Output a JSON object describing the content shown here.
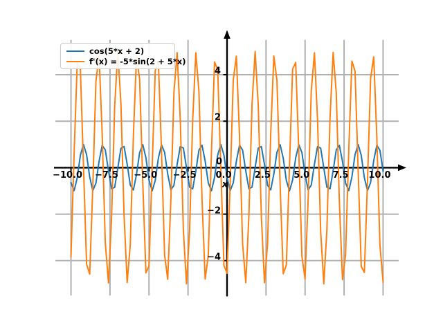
{
  "figure": {
    "background": "#ffffff",
    "x_axis_label": "x",
    "origin_y_tick_label": "0"
  },
  "legend": {
    "position": "upper-left"
  },
  "chart_data": {
    "type": "line",
    "title": "",
    "xlabel": "x",
    "ylabel": "",
    "xlim": [
      -11,
      11
    ],
    "ylim": [
      -5.5,
      5.5
    ],
    "grid": true,
    "grid_color": "#b0b0b0",
    "axis_color": "#000000",
    "legend_position": "upper left",
    "x_ticks": [
      -10.0,
      -7.5,
      -5.0,
      -2.5,
      0.0,
      2.5,
      5.0,
      7.5,
      10.0
    ],
    "x_tick_labels": [
      "−10.0",
      "−7.5",
      "−5.0",
      "−2.5",
      "0.0",
      "2.5",
      "5.0",
      "7.5",
      "10.0"
    ],
    "y_ticks": [
      -4,
      -2,
      0,
      2,
      4
    ],
    "y_tick_labels": [
      "−4",
      "−2",
      "0",
      "2",
      "4"
    ],
    "sampling": {
      "x_start": -10,
      "x_end": 10,
      "x_step": 0.2,
      "num_points": 101
    },
    "series": [
      {
        "name": "cos(5*x + 2)",
        "expression": "y = cos(5*x + 2)",
        "function": "cos",
        "amplitude": 1,
        "angular_frequency": 5,
        "phase": 2,
        "color": "#1f77b4",
        "line_width": 2
      },
      {
        "name": "f'(x) = -5*sin(2 + 5*x)",
        "expression": "y = -5*sin(2 + 5*x)",
        "function": "sin",
        "amplitude": -5,
        "angular_frequency": 5,
        "phase": 2,
        "color": "#ff7f0e",
        "line_width": 2
      }
    ]
  }
}
